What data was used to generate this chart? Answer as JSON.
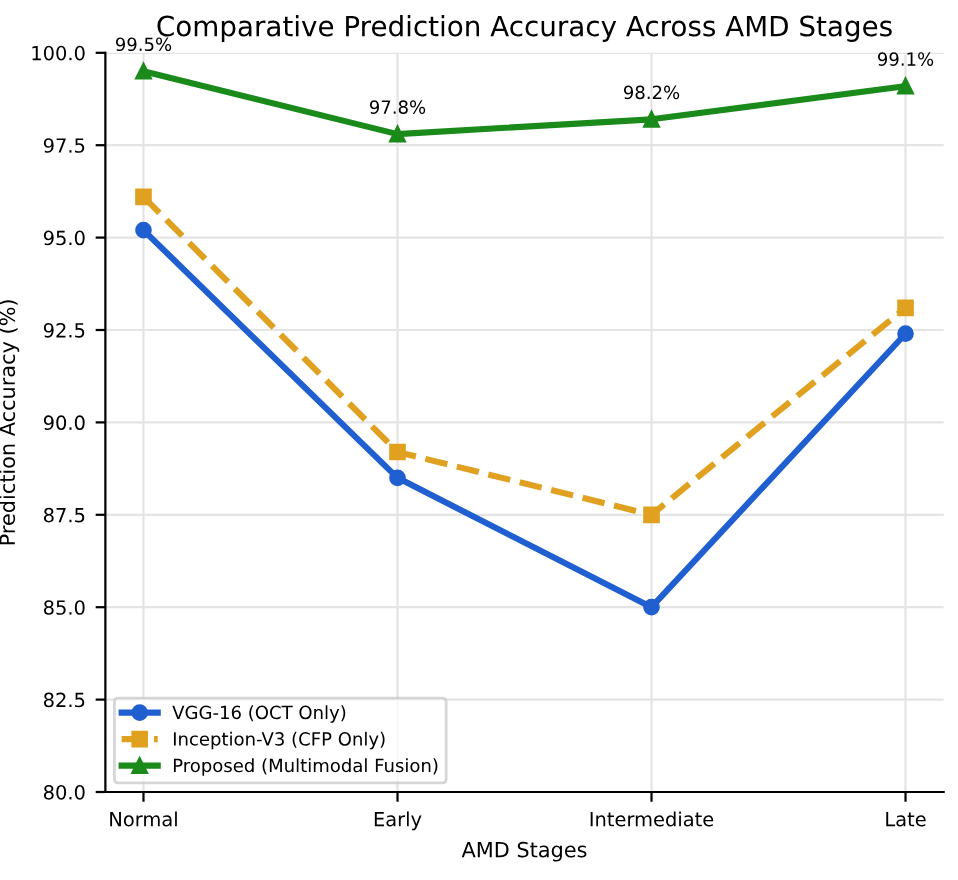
{
  "chart_data": {
    "type": "line",
    "title": "Comparative Prediction Accuracy Across AMD Stages",
    "xlabel": "AMD Stages",
    "ylabel": "Prediction Accuracy (%)",
    "categories": [
      "Normal",
      "Early",
      "Intermediate",
      "Late"
    ],
    "series": [
      {
        "name": "VGG-16 (OCT Only)",
        "color": "#1f5fd0",
        "values": [
          95.2,
          88.5,
          85.0,
          92.4
        ],
        "marker": "circle",
        "line_style": "solid"
      },
      {
        "name": "Inception-V3 (CFP Only)",
        "color": "#e0a020",
        "values": [
          96.1,
          89.2,
          87.5,
          93.1
        ],
        "marker": "square",
        "line_style": "dashed"
      },
      {
        "name": "Proposed (Multimodal Fusion)",
        "color": "#1a8a1a",
        "values": [
          99.5,
          97.8,
          98.2,
          99.1
        ],
        "marker": "triangle",
        "line_style": "solid",
        "value_labels": [
          "99.5%",
          "97.8%",
          "98.2%",
          "99.1%"
        ]
      }
    ],
    "ylim": [
      80.0,
      100.0
    ],
    "yticks": [
      {
        "value": 80,
        "label": "80.0"
      },
      {
        "value": 82.5,
        "label": "82.5"
      },
      {
        "value": 85,
        "label": "85.0"
      },
      {
        "value": 87.5,
        "label": "87.5"
      },
      {
        "value": 90,
        "label": "90.0"
      },
      {
        "value": 92.5,
        "label": "92.5"
      },
      {
        "value": 95,
        "label": "95.0"
      },
      {
        "value": 97.5,
        "label": "97.5"
      },
      {
        "value": 100,
        "label": "100.0"
      }
    ],
    "grid": true,
    "legend": "bottom left"
  }
}
